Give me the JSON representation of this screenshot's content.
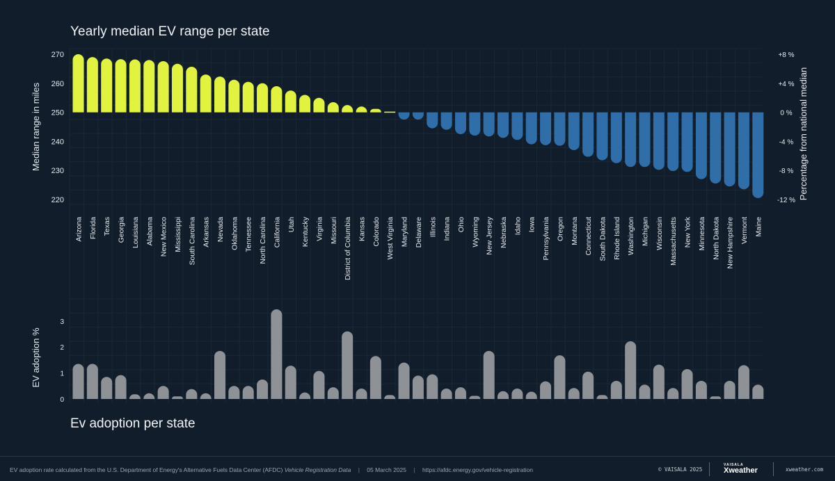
{
  "chart_data": [
    {
      "type": "bar",
      "title": "Yearly median EV range per state",
      "ylabel": "Median range in miles",
      "y2label": "Percentage from national median",
      "baseline": 250,
      "ylim": [
        218,
        271
      ],
      "yticks": [
        220,
        230,
        240,
        250,
        260,
        270
      ],
      "y2ticks": [
        {
          "value": 270,
          "label": "+8 %"
        },
        {
          "value": 260,
          "label": "+4 %"
        },
        {
          "value": 250,
          "label": "0 %"
        },
        {
          "value": 240,
          "label": "-4 %"
        },
        {
          "value": 230,
          "label": "-8 %"
        },
        {
          "value": 220,
          "label": "-12 %"
        }
      ],
      "above_color": "#e1f23f",
      "below_color": "#2f6ea8",
      "categories": [
        "Arizona",
        "Florida",
        "Texas",
        "Georgia",
        "Louisiana",
        "Alabama",
        "New Mexico",
        "Mississippi",
        "South Carolina",
        "Arkansas",
        "Nevada",
        "Oklahoma",
        "Tennessee",
        "North Carolina",
        "California",
        "Utah",
        "Kentucky",
        "Virginia",
        "Missouri",
        "District of Columbia",
        "Kansas",
        "Colorado",
        "West Virginia",
        "Maryland",
        "Delaware",
        "Illinois",
        "Indiana",
        "Ohio",
        "Wyoming",
        "New Jersey",
        "Nebraska",
        "Idaho",
        "Iowa",
        "Pennsylvania",
        "Oregon",
        "Montana",
        "Connecticut",
        "South Dakota",
        "Rhode Island",
        "Washington",
        "Michigan",
        "Wisconsin",
        "Massachusetts",
        "New York",
        "Minnesota",
        "North Dakota",
        "New Hampshire",
        "Vermont",
        "Maine"
      ],
      "values": [
        270,
        269,
        268.5,
        268.3,
        268.2,
        268,
        267.6,
        266.7,
        265.7,
        263,
        262.3,
        261.2,
        260.5,
        260,
        259,
        257.5,
        256,
        255,
        253.5,
        252.5,
        252,
        251.2,
        250.3,
        247.5,
        247.5,
        244.5,
        244,
        242.5,
        242,
        241.7,
        241.2,
        240.5,
        239,
        238.7,
        238.5,
        237,
        234.7,
        233.5,
        232.5,
        231.2,
        231.2,
        230.2,
        229.8,
        229.5,
        227,
        225.5,
        224.5,
        223.5,
        220.5
      ]
    },
    {
      "type": "bar",
      "title": "Ev adoption per state",
      "ylabel": "EV adoption %",
      "ylim": [
        0,
        3.5
      ],
      "yticks": [
        0,
        1,
        2,
        3
      ],
      "color": "#8e9297",
      "values": [
        1.35,
        1.35,
        0.85,
        0.92,
        0.18,
        0.22,
        0.5,
        0.1,
        0.38,
        0.22,
        1.85,
        0.5,
        0.5,
        0.75,
        3.45,
        1.28,
        0.25,
        1.08,
        0.45,
        2.6,
        0.4,
        1.65,
        0.15,
        1.4,
        0.9,
        0.95,
        0.4,
        0.45,
        0.12,
        1.85,
        0.3,
        0.4,
        0.28,
        0.68,
        1.68,
        0.42,
        1.05,
        0.15,
        0.7,
        2.22,
        0.55,
        1.32,
        0.42,
        1.15,
        0.7,
        0.1,
        0.7,
        1.3,
        0.55
      ]
    }
  ],
  "footer": {
    "note_prefix": "EV adoption rate calculated from the U.S. Department of Energy's Alternative Fuels Data Center (AFDC)",
    "note_italic": "Vehicle Registration Data",
    "date": "05 March 2025",
    "source_url": "https://afdc.energy.gov/vehicle-registration",
    "separator": "|",
    "copyright": "© VAISALA 2025",
    "logo_small": "VAISALA",
    "logo_big": "Xweather",
    "site": "xweather.com"
  }
}
